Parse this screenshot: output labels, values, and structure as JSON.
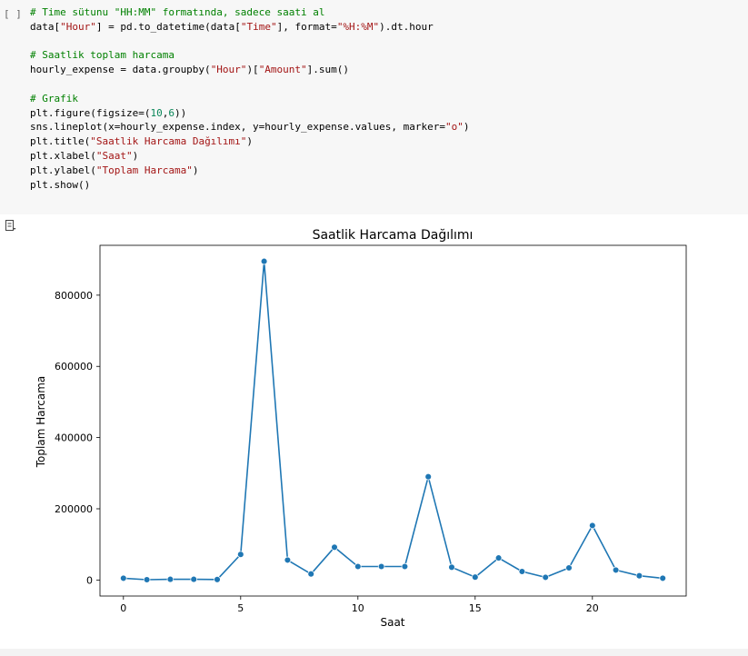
{
  "code_cell": {
    "run_label": "[ ]",
    "lines": [
      [
        {
          "t": "# Time sütunu \"HH:MM\" formatında, sadece saati al",
          "c": "cmt"
        }
      ],
      [
        {
          "t": "data[",
          "c": ""
        },
        {
          "t": "\"Hour\"",
          "c": "str"
        },
        {
          "t": "] = pd.to_datetime(data[",
          "c": ""
        },
        {
          "t": "\"Time\"",
          "c": "str"
        },
        {
          "t": "], format=",
          "c": ""
        },
        {
          "t": "\"%H:%M\"",
          "c": "str"
        },
        {
          "t": ").dt.hour",
          "c": ""
        }
      ],
      [
        {
          "t": "",
          "c": ""
        }
      ],
      [
        {
          "t": "# Saatlik toplam harcama",
          "c": "cmt"
        }
      ],
      [
        {
          "t": "hourly_expense = data.groupby(",
          "c": ""
        },
        {
          "t": "\"Hour\"",
          "c": "str"
        },
        {
          "t": ")[",
          "c": ""
        },
        {
          "t": "\"Amount\"",
          "c": "str"
        },
        {
          "t": "].sum()",
          "c": ""
        }
      ],
      [
        {
          "t": "",
          "c": ""
        }
      ],
      [
        {
          "t": "# Grafik",
          "c": "cmt"
        }
      ],
      [
        {
          "t": "plt.figure(figsize=(",
          "c": ""
        },
        {
          "t": "10",
          "c": "num"
        },
        {
          "t": ",",
          "c": ""
        },
        {
          "t": "6",
          "c": "num"
        },
        {
          "t": "))",
          "c": ""
        }
      ],
      [
        {
          "t": "sns.lineplot(x=hourly_expense.index, y=hourly_expense.values, marker=",
          "c": ""
        },
        {
          "t": "\"o\"",
          "c": "str"
        },
        {
          "t": ")",
          "c": ""
        }
      ],
      [
        {
          "t": "plt.title(",
          "c": ""
        },
        {
          "t": "\"Saatlik Harcama Dağılımı\"",
          "c": "str"
        },
        {
          "t": ")",
          "c": ""
        }
      ],
      [
        {
          "t": "plt.xlabel(",
          "c": ""
        },
        {
          "t": "\"Saat\"",
          "c": "str"
        },
        {
          "t": ")",
          "c": ""
        }
      ],
      [
        {
          "t": "plt.ylabel(",
          "c": ""
        },
        {
          "t": "\"Toplam Harcama\"",
          "c": "str"
        },
        {
          "t": ")",
          "c": ""
        }
      ],
      [
        {
          "t": "plt.show()",
          "c": ""
        }
      ]
    ]
  },
  "output_icon": "output-toggle-icon",
  "chart_data": {
    "type": "line",
    "title": "Saatlik Harcama Dağılımı",
    "xlabel": "Saat",
    "ylabel": "Toplam Harcama",
    "x": [
      0,
      1,
      2,
      3,
      4,
      5,
      6,
      7,
      8,
      9,
      10,
      11,
      12,
      13,
      14,
      15,
      16,
      17,
      18,
      19,
      20,
      21,
      22,
      23
    ],
    "values": [
      5000,
      1000,
      2000,
      2000,
      1500,
      72000,
      895000,
      56000,
      17000,
      92000,
      38000,
      38000,
      38000,
      290000,
      36000,
      8000,
      62000,
      24000,
      7500,
      34000,
      153000,
      28000,
      12000,
      5000
    ],
    "xlim": [
      -1,
      24
    ],
    "ylim": [
      -45000,
      940000
    ],
    "xticks": [
      0,
      5,
      10,
      15,
      20
    ],
    "yticks": [
      0,
      200000,
      400000,
      600000,
      800000
    ],
    "ytick_labels": [
      "0",
      "200000",
      "400000",
      "600000",
      "800000"
    ],
    "grid": false,
    "line_color": "#1f77b4",
    "marker": "o"
  }
}
